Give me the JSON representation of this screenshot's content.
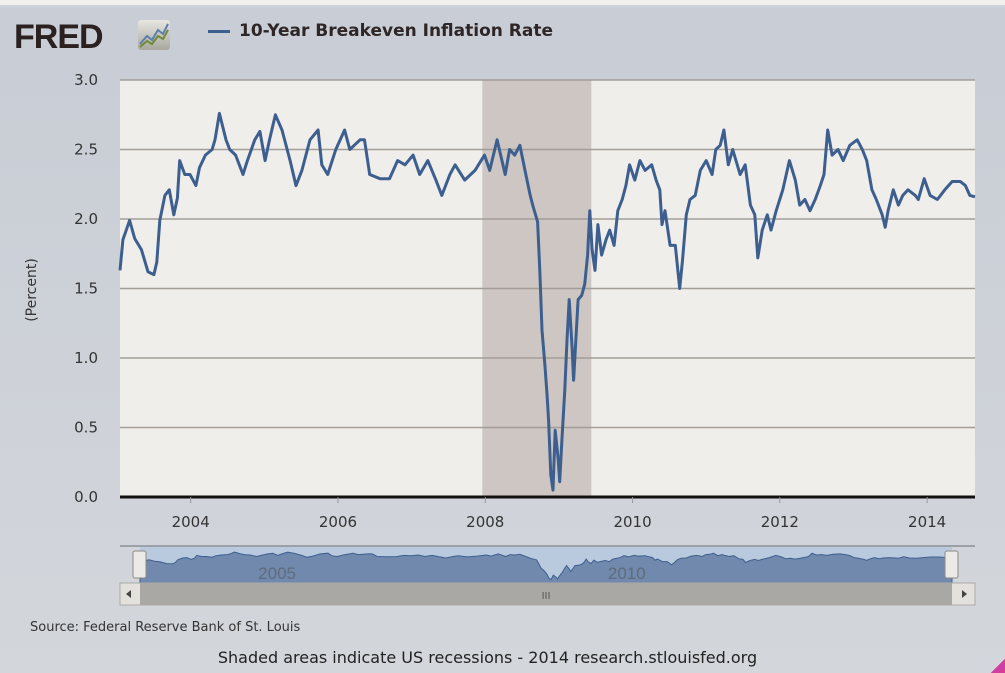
{
  "logo": {
    "text": "FRED"
  },
  "colors": {
    "series": "#3d5f8f",
    "recession": "#cdc6c2",
    "plot_bg": "#f0eeeb",
    "grid": "#a39d98"
  },
  "chart_data": {
    "type": "line",
    "title": "",
    "xlabel": "",
    "ylabel": "(Percent)",
    "xlim": [
      2003.04,
      2014.65
    ],
    "ylim": [
      0,
      3.0
    ],
    "yticks": [
      "0.0",
      "0.5",
      "1.0",
      "1.5",
      "2.0",
      "2.5",
      "3.0"
    ],
    "xticks": [
      "2004",
      "2006",
      "2008",
      "2010",
      "2012",
      "2014"
    ],
    "grid": true,
    "legend_position": "top",
    "recessions": [
      [
        2007.96,
        2009.44
      ]
    ],
    "series": [
      {
        "name": "10-Year Breakeven Inflation Rate",
        "x": [
          2003.04,
          2003.08,
          2003.17,
          2003.24,
          2003.33,
          2003.42,
          2003.5,
          2003.54,
          2003.58,
          2003.65,
          2003.71,
          2003.77,
          2003.82,
          2003.85,
          2003.92,
          2003.99,
          2004.07,
          2004.12,
          2004.2,
          2004.29,
          2004.33,
          2004.39,
          2004.48,
          2004.53,
          2004.61,
          2004.71,
          2004.77,
          2004.87,
          2004.94,
          2005.01,
          2005.07,
          2005.15,
          2005.24,
          2005.35,
          2005.43,
          2005.51,
          2005.62,
          2005.73,
          2005.78,
          2005.86,
          2005.97,
          2006.09,
          2006.16,
          2006.3,
          2006.36,
          2006.43,
          2006.57,
          2006.7,
          2006.81,
          2006.91,
          2007.02,
          2007.11,
          2007.22,
          2007.33,
          2007.41,
          2007.52,
          2007.59,
          2007.72,
          2007.86,
          2007.99,
          2008.06,
          2008.16,
          2008.27,
          2008.33,
          2008.4,
          2008.47,
          2008.54,
          2008.61,
          2008.65,
          2008.71,
          2008.74,
          2008.77,
          2008.81,
          2008.84,
          2008.86,
          2008.89,
          2008.92,
          2008.95,
          2008.99,
          2009.01,
          2009.04,
          2009.08,
          2009.11,
          2009.14,
          2009.18,
          2009.2,
          2009.26,
          2009.31,
          2009.35,
          2009.39,
          2009.42,
          2009.45,
          2009.49,
          2009.53,
          2009.58,
          2009.64,
          2009.69,
          2009.75,
          2009.8,
          2009.86,
          2009.91,
          2009.96,
          2010.03,
          2010.1,
          2010.17,
          2010.26,
          2010.32,
          2010.37,
          2010.4,
          2010.44,
          2010.51,
          2010.58,
          2010.64,
          2010.68,
          2010.73,
          2010.78,
          2010.85,
          2010.92,
          2011.0,
          2011.08,
          2011.13,
          2011.19,
          2011.24,
          2011.3,
          2011.36,
          2011.46,
          2011.53,
          2011.6,
          2011.66,
          2011.7,
          2011.76,
          2011.83,
          2011.88,
          2011.95,
          2012.04,
          2012.13,
          2012.21,
          2012.27,
          2012.34,
          2012.41,
          2012.48,
          2012.55,
          2012.6,
          2012.65,
          2012.71,
          2012.79,
          2012.86,
          2012.95,
          2013.05,
          2013.12,
          2013.18,
          2013.25,
          2013.31,
          2013.39,
          2013.43,
          2013.47,
          2013.54,
          2013.61,
          2013.67,
          2013.74,
          2013.84,
          2013.88,
          2013.96,
          2014.04,
          2014.14,
          2014.24,
          2014.34,
          2014.45,
          2014.52,
          2014.58,
          2014.65
        ],
        "y": [
          1.63,
          1.85,
          1.99,
          1.86,
          1.78,
          1.62,
          1.6,
          1.69,
          1.99,
          2.17,
          2.21,
          2.03,
          2.15,
          2.42,
          2.32,
          2.32,
          2.24,
          2.37,
          2.46,
          2.5,
          2.57,
          2.76,
          2.57,
          2.5,
          2.46,
          2.32,
          2.42,
          2.57,
          2.63,
          2.42,
          2.57,
          2.75,
          2.64,
          2.42,
          2.24,
          2.35,
          2.57,
          2.64,
          2.39,
          2.32,
          2.5,
          2.64,
          2.5,
          2.57,
          2.57,
          2.32,
          2.29,
          2.29,
          2.42,
          2.39,
          2.46,
          2.32,
          2.42,
          2.28,
          2.17,
          2.32,
          2.39,
          2.28,
          2.35,
          2.46,
          2.35,
          2.57,
          2.32,
          2.5,
          2.46,
          2.53,
          2.35,
          2.17,
          2.09,
          1.98,
          1.63,
          1.2,
          0.95,
          0.73,
          0.55,
          0.16,
          0.05,
          0.48,
          0.27,
          0.11,
          0.41,
          0.77,
          1.13,
          1.42,
          1.06,
          0.84,
          1.42,
          1.45,
          1.53,
          1.74,
          2.06,
          1.78,
          1.63,
          1.96,
          1.74,
          1.85,
          1.92,
          1.81,
          2.06,
          2.14,
          2.24,
          2.39,
          2.28,
          2.42,
          2.35,
          2.39,
          2.28,
          2.21,
          1.96,
          2.06,
          1.81,
          1.81,
          1.5,
          1.71,
          2.03,
          2.14,
          2.17,
          2.35,
          2.42,
          2.32,
          2.5,
          2.53,
          2.64,
          2.39,
          2.5,
          2.32,
          2.39,
          2.1,
          2.03,
          1.72,
          1.92,
          2.03,
          1.92,
          2.06,
          2.21,
          2.42,
          2.28,
          2.1,
          2.14,
          2.06,
          2.14,
          2.24,
          2.32,
          2.64,
          2.46,
          2.5,
          2.42,
          2.53,
          2.57,
          2.5,
          2.42,
          2.21,
          2.14,
          2.03,
          1.94,
          2.06,
          2.21,
          2.1,
          2.17,
          2.21,
          2.17,
          2.14,
          2.29,
          2.17,
          2.14,
          2.21,
          2.27,
          2.27,
          2.24,
          2.17,
          2.16
        ]
      }
    ],
    "navigator": {
      "labels": [
        "2005",
        "2010"
      ],
      "scroll_grip": "III"
    }
  },
  "footer": {
    "source": "Source: Federal Reserve Bank of St. Louis",
    "note": "Shaded areas indicate US recessions - 2014 research.stlouisfed.org"
  }
}
